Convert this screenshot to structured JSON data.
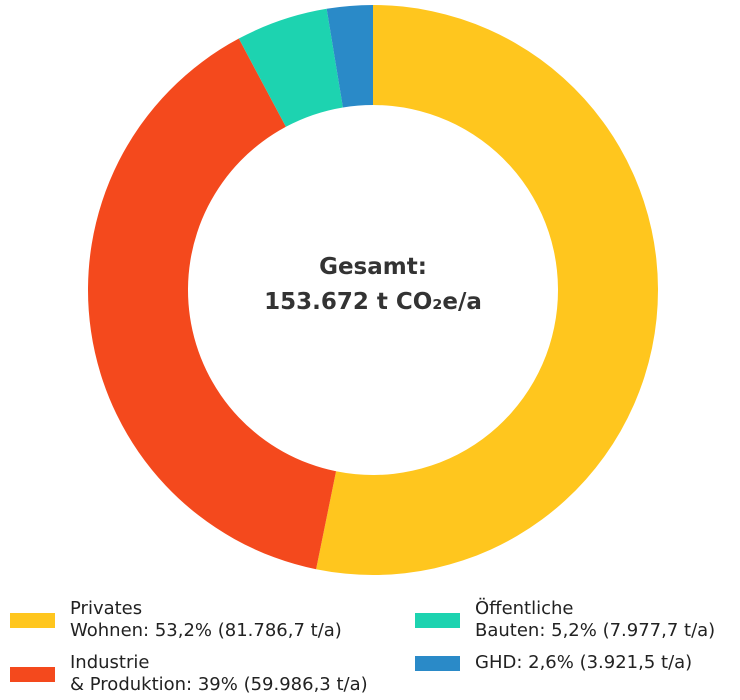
{
  "chart_data": {
    "type": "donut",
    "center_title": "Gesamt:",
    "center_value": "153.672 t CO₂e/a",
    "categories": [
      "Privates\nWohnen: 53,2% (81.786,7 t/a)",
      "Industrie\n& Produktion: 39% (59.986,3 t/a)",
      "Öffentliche\nBauten: 5,2% (7.977,7 t/a)",
      "GHD: 2,6% (3.921,5 t/a)"
    ],
    "values": [
      53.2,
      39,
      5.2,
      2.6
    ],
    "colors": [
      "#ffc61e",
      "#f4491d",
      "#1dd3b0",
      "#2a8ac8"
    ],
    "legend": "bottom"
  }
}
